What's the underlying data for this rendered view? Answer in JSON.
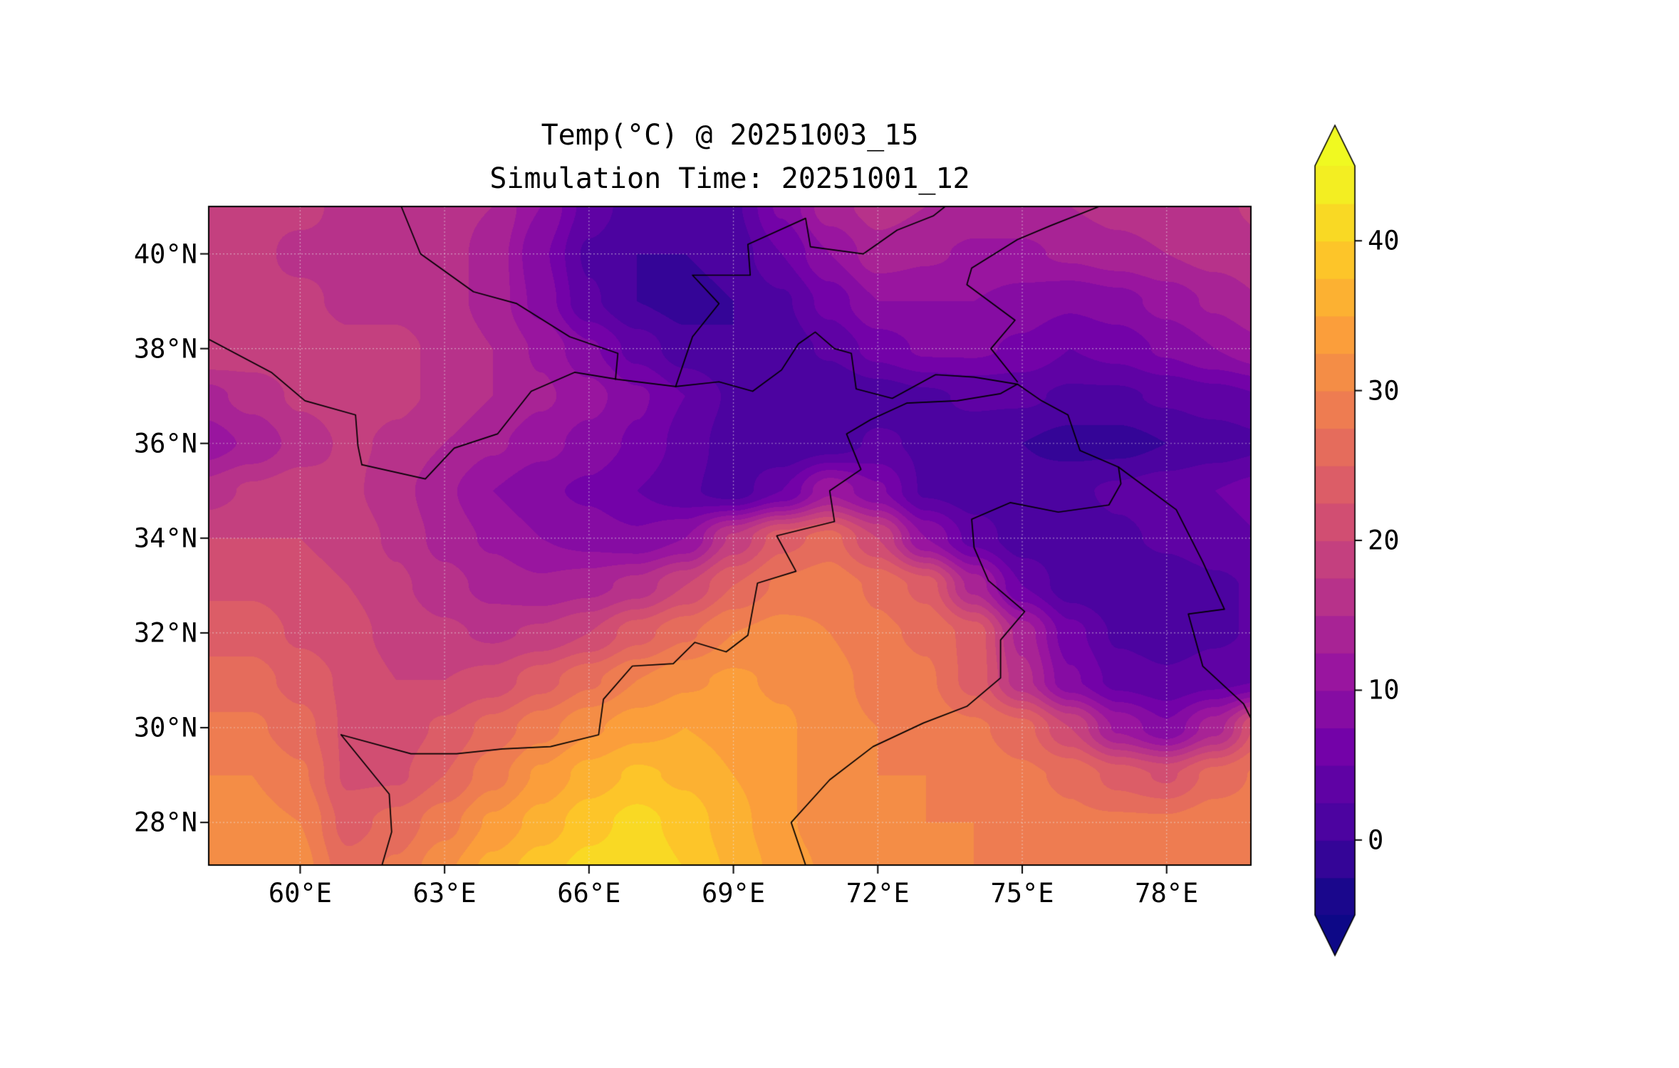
{
  "figure": {
    "title_line1": "Temp(°C) @ 20251003_15",
    "title_line2": "Simulation Time: 20251001_12",
    "background": "#ffffff",
    "text_color": "#000000"
  },
  "axes": {
    "extent": {
      "lon_min": 58.1,
      "lon_max": 79.75,
      "lat_min": 27.1,
      "lat_max": 41.0
    },
    "x_ticks": [
      {
        "value": 60,
        "label": "60°E"
      },
      {
        "value": 63,
        "label": "63°E"
      },
      {
        "value": 66,
        "label": "66°E"
      },
      {
        "value": 69,
        "label": "69°E"
      },
      {
        "value": 72,
        "label": "72°E"
      },
      {
        "value": 75,
        "label": "75°E"
      },
      {
        "value": 78,
        "label": "78°E"
      }
    ],
    "y_ticks": [
      {
        "value": 40,
        "label": "40°N"
      },
      {
        "value": 38,
        "label": "38°N"
      },
      {
        "value": 36,
        "label": "36°N"
      },
      {
        "value": 34,
        "label": "34°N"
      },
      {
        "value": 32,
        "label": "32°N"
      },
      {
        "value": 30,
        "label": "30°N"
      },
      {
        "value": 28,
        "label": "28°N"
      }
    ],
    "grid": true
  },
  "colorbar": {
    "vmin": -5,
    "vmax": 45,
    "level_step": 2.5,
    "extend": "both",
    "colormap": "plasma",
    "ticks": [
      {
        "value": 40,
        "label": "40"
      },
      {
        "value": 30,
        "label": "30"
      },
      {
        "value": 20,
        "label": "20"
      },
      {
        "value": 10,
        "label": "10"
      },
      {
        "value": 0,
        "label": "0"
      }
    ],
    "colormap_stops": [
      {
        "t": 0.0,
        "color": "#0d0887"
      },
      {
        "t": 0.111,
        "color": "#46039f"
      },
      {
        "t": 0.222,
        "color": "#7201a8"
      },
      {
        "t": 0.333,
        "color": "#9c179e"
      },
      {
        "t": 0.444,
        "color": "#bd3786"
      },
      {
        "t": 0.556,
        "color": "#d8576b"
      },
      {
        "t": 0.667,
        "color": "#ed7953"
      },
      {
        "t": 0.778,
        "color": "#fb9f3a"
      },
      {
        "t": 0.889,
        "color": "#fdca26"
      },
      {
        "t": 1.0,
        "color": "#f0f921"
      }
    ]
  },
  "chart_data": {
    "type": "heatmap",
    "title": "Temp(°C) @ 20251003_15",
    "subtitle": "Simulation Time: 20251001_12",
    "units": "°C",
    "xlabel": "",
    "ylabel": "",
    "legend_position": "right-colorbar",
    "value_range": [
      -5,
      45
    ],
    "contour_level_step": 2.5,
    "lons": [
      58,
      59,
      60,
      61,
      62,
      63,
      64,
      65,
      66,
      67,
      68,
      69,
      70,
      71,
      72,
      73,
      74,
      75,
      76,
      77,
      78,
      79,
      80
    ],
    "lats": [
      41,
      40,
      39,
      38,
      37,
      36,
      35,
      34,
      33,
      32,
      31,
      30,
      29,
      28,
      27
    ],
    "values": [
      [
        18,
        18,
        18,
        17,
        17,
        16,
        15,
        10,
        4,
        1,
        0,
        2,
        8,
        14,
        16,
        15,
        14,
        14,
        15,
        16,
        17,
        17,
        18
      ],
      [
        18,
        18,
        17,
        17,
        17,
        16,
        14,
        8,
        2,
        0,
        0,
        1,
        5,
        10,
        14,
        13,
        12,
        12,
        13,
        14,
        15,
        16,
        17
      ],
      [
        19,
        18,
        18,
        17,
        17,
        16,
        14,
        9,
        3,
        0,
        -1,
        0,
        2,
        6,
        10,
        10,
        10,
        9,
        8,
        9,
        11,
        13,
        15
      ],
      [
        20,
        19,
        19,
        18,
        18,
        17,
        15,
        12,
        8,
        4,
        1,
        0,
        1,
        3,
        6,
        8,
        8,
        7,
        5,
        6,
        8,
        10,
        12
      ],
      [
        14,
        16,
        18,
        19,
        18,
        17,
        15,
        13,
        11,
        8,
        5,
        2,
        0,
        0,
        1,
        2,
        3,
        3,
        2,
        2,
        3,
        4,
        5
      ],
      [
        11,
        13,
        16,
        18,
        17,
        15,
        13,
        11,
        9,
        7,
        4,
        1,
        0,
        1,
        3,
        2,
        1,
        0,
        -1,
        -1,
        0,
        1,
        2
      ],
      [
        16,
        18,
        19,
        18,
        16,
        13,
        10,
        8,
        7,
        5,
        3,
        1,
        5,
        12,
        8,
        2,
        1,
        1,
        2,
        3,
        4,
        5,
        6
      ],
      [
        20,
        20,
        20,
        19,
        17,
        14,
        12,
        10,
        9,
        8,
        10,
        18,
        24,
        26,
        20,
        10,
        4,
        1,
        1,
        2,
        3,
        4,
        5
      ],
      [
        22,
        22,
        21,
        20,
        18,
        16,
        14,
        13,
        14,
        16,
        20,
        25,
        28,
        29,
        27,
        24,
        14,
        5,
        1,
        0,
        1,
        2,
        3
      ],
      [
        24,
        24,
        22,
        21,
        19,
        18,
        17,
        18,
        20,
        24,
        27,
        30,
        31,
        30,
        28,
        27,
        24,
        14,
        6,
        2,
        1,
        2,
        3
      ],
      [
        26,
        26,
        24,
        22,
        20,
        20,
        21,
        24,
        27,
        30,
        32,
        33,
        32,
        31,
        29,
        28,
        24,
        16,
        8,
        4,
        3,
        4,
        5
      ],
      [
        28,
        28,
        26,
        22,
        21,
        23,
        26,
        29,
        32,
        34,
        35,
        34,
        33,
        31,
        30,
        29,
        28,
        26,
        20,
        12,
        8,
        14,
        24
      ],
      [
        30,
        30,
        28,
        22,
        22,
        25,
        29,
        33,
        36,
        38,
        37,
        35,
        33,
        31,
        30,
        30,
        29,
        28,
        27,
        24,
        22,
        26,
        28
      ],
      [
        31,
        31,
        30,
        24,
        26,
        29,
        33,
        36,
        39,
        41,
        39,
        36,
        33,
        31,
        30,
        30,
        30,
        29,
        28,
        28,
        28,
        29,
        29
      ],
      [
        32,
        32,
        31,
        26,
        28,
        32,
        36,
        39,
        41,
        42,
        40,
        37,
        34,
        32,
        31,
        31,
        30,
        30,
        29,
        29,
        29,
        30,
        30
      ]
    ]
  },
  "map_overlays": {
    "border_color": "#000000",
    "borders": [
      [
        [
          58.0,
          38.25
        ],
        [
          59.4,
          37.5
        ],
        [
          60.1,
          36.9
        ],
        [
          61.15,
          36.6
        ],
        [
          61.2,
          35.95
        ],
        [
          61.28,
          35.55
        ]
      ],
      [
        [
          61.28,
          35.55
        ],
        [
          62.6,
          35.25
        ],
        [
          63.2,
          35.9
        ],
        [
          64.1,
          36.2
        ],
        [
          64.8,
          37.1
        ],
        [
          65.7,
          37.5
        ],
        [
          66.6,
          37.35
        ],
        [
          67.8,
          37.2
        ],
        [
          68.7,
          37.3
        ],
        [
          69.4,
          37.1
        ],
        [
          70.0,
          37.55
        ],
        [
          70.35,
          38.1
        ],
        [
          70.7,
          38.35
        ],
        [
          71.1,
          38.0
        ],
        [
          71.45,
          37.9
        ],
        [
          71.55,
          37.15
        ],
        [
          72.3,
          36.95
        ],
        [
          73.2,
          37.45
        ],
        [
          74.0,
          37.4
        ],
        [
          74.9,
          37.25
        ]
      ],
      [
        [
          60.85,
          29.85
        ],
        [
          62.3,
          29.45
        ],
        [
          63.25,
          29.45
        ],
        [
          64.2,
          29.55
        ],
        [
          65.2,
          29.6
        ],
        [
          66.2,
          29.85
        ],
        [
          66.3,
          30.6
        ],
        [
          66.9,
          31.3
        ],
        [
          67.75,
          31.35
        ],
        [
          68.2,
          31.8
        ],
        [
          68.85,
          31.6
        ],
        [
          69.3,
          31.95
        ],
        [
          69.5,
          33.05
        ],
        [
          70.3,
          33.3
        ],
        [
          69.9,
          34.05
        ],
        [
          71.1,
          34.35
        ],
        [
          71.0,
          35.0
        ],
        [
          71.65,
          35.45
        ],
        [
          71.35,
          36.2
        ],
        [
          71.85,
          36.5
        ],
        [
          72.6,
          36.85
        ],
        [
          73.65,
          36.9
        ],
        [
          74.55,
          37.05
        ],
        [
          74.9,
          37.25
        ]
      ],
      [
        [
          60.85,
          29.85
        ],
        [
          61.85,
          28.6
        ],
        [
          61.9,
          27.8
        ],
        [
          61.7,
          27.1
        ]
      ],
      [
        [
          70.5,
          27.1
        ],
        [
          70.2,
          28.0
        ],
        [
          71.0,
          28.9
        ],
        [
          71.9,
          29.6
        ],
        [
          72.95,
          30.1
        ],
        [
          73.85,
          30.45
        ],
        [
          74.55,
          31.05
        ],
        [
          74.55,
          31.85
        ],
        [
          75.05,
          32.45
        ],
        [
          74.3,
          33.1
        ],
        [
          74.0,
          33.8
        ],
        [
          73.95,
          34.4
        ],
        [
          74.75,
          34.75
        ],
        [
          75.75,
          34.55
        ],
        [
          76.8,
          34.7
        ],
        [
          77.05,
          35.15
        ],
        [
          77.0,
          35.5
        ]
      ],
      [
        [
          77.0,
          35.5
        ],
        [
          76.2,
          35.85
        ],
        [
          75.95,
          36.6
        ],
        [
          75.4,
          36.9
        ],
        [
          74.9,
          37.25
        ]
      ],
      [
        [
          77.0,
          35.5
        ],
        [
          78.2,
          34.6
        ],
        [
          78.75,
          33.5
        ],
        [
          79.2,
          32.5
        ],
        [
          78.45,
          32.4
        ],
        [
          78.75,
          31.3
        ],
        [
          79.6,
          30.5
        ],
        [
          79.75,
          30.2
        ]
      ],
      [
        [
          62.1,
          41.0
        ],
        [
          62.5,
          40.0
        ],
        [
          63.6,
          39.2
        ],
        [
          64.5,
          38.95
        ],
        [
          65.6,
          38.25
        ],
        [
          66.6,
          37.9
        ],
        [
          66.55,
          37.35
        ]
      ],
      [
        [
          67.8,
          37.2
        ],
        [
          68.15,
          38.25
        ],
        [
          68.7,
          38.95
        ],
        [
          68.15,
          39.55
        ],
        [
          69.35,
          39.55
        ],
        [
          69.3,
          40.2
        ],
        [
          70.5,
          40.75
        ],
        [
          70.6,
          40.15
        ],
        [
          71.7,
          40.0
        ],
        [
          72.4,
          40.5
        ],
        [
          73.15,
          40.8
        ],
        [
          73.4,
          41.0
        ]
      ],
      [
        [
          76.6,
          41.0
        ],
        [
          75.6,
          40.6
        ],
        [
          74.9,
          40.3
        ],
        [
          73.95,
          39.7
        ],
        [
          73.85,
          39.35
        ],
        [
          74.85,
          38.6
        ],
        [
          74.35,
          38.0
        ],
        [
          74.9,
          37.3
        ]
      ]
    ]
  }
}
